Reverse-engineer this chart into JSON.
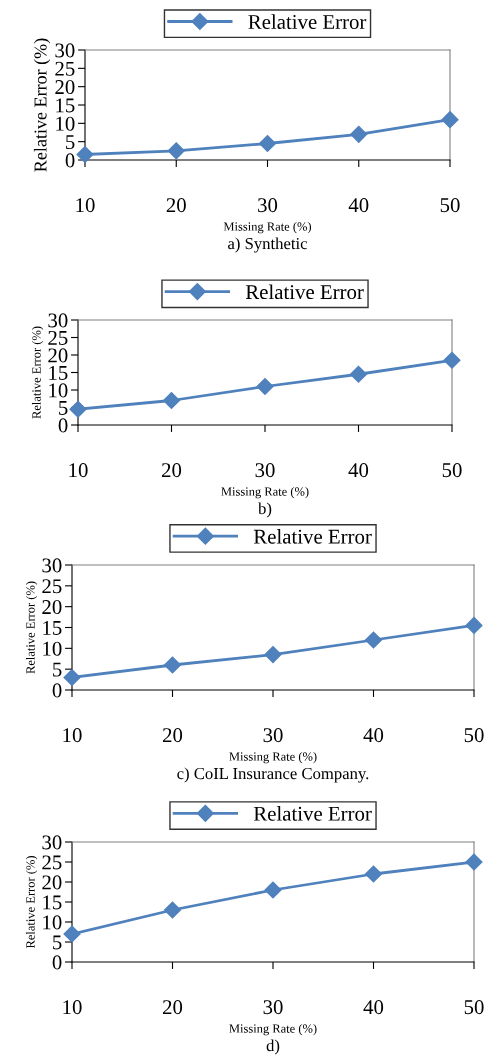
{
  "chart_data": [
    {
      "type": "line",
      "x": [
        10,
        20,
        30,
        40,
        50
      ],
      "series": [
        {
          "name": "Relative Error",
          "color": "#4f81bd",
          "values": [
            1.5,
            2.5,
            4.5,
            7,
            11
          ]
        }
      ],
      "xlim": [
        10,
        50
      ],
      "xticks": [
        10,
        20,
        30,
        40,
        50
      ],
      "ylim": [
        0,
        30
      ],
      "yticks": [
        0,
        5,
        10,
        15,
        20,
        25,
        30
      ],
      "xlabel": "Missing Rate (%)",
      "ylabel": "Relative Error (%)",
      "marker": "diamond",
      "line_style": "solid",
      "legend": "top",
      "grid": false,
      "annotations": [
        "a) Synthetic"
      ]
    },
    {
      "type": "line",
      "x": [
        10,
        20,
        30,
        40,
        50
      ],
      "series": [
        {
          "name": "Relative Error",
          "color": "#4f81bd",
          "values": [
            4.5,
            7,
            11,
            14.5,
            18.5
          ]
        }
      ],
      "xlim": [
        10,
        50
      ],
      "xticks": [
        10,
        20,
        30,
        40,
        50
      ],
      "ylim": [
        0,
        30
      ],
      "yticks": [
        0,
        5,
        10,
        15,
        20,
        25,
        30
      ],
      "xlabel": "Missing Rate (%)",
      "ylabel": "Relative Error (%)",
      "marker": "diamond",
      "line_style": "solid",
      "legend": "top",
      "grid": false,
      "annotations": [
        "b)"
      ]
    },
    {
      "type": "line",
      "x": [
        10,
        20,
        30,
        40,
        50
      ],
      "series": [
        {
          "name": "Relative Error",
          "color": "#4f81bd",
          "values": [
            3,
            6,
            8.5,
            12,
            15.5
          ]
        }
      ],
      "xlim": [
        10,
        50
      ],
      "xticks": [
        10,
        20,
        30,
        40,
        50
      ],
      "ylim": [
        0,
        30
      ],
      "yticks": [
        0,
        5,
        10,
        15,
        20,
        25,
        30
      ],
      "xlabel": "Missing Rate (%)",
      "ylabel": "Relative Error (%)",
      "marker": "diamond",
      "line_style": "solid",
      "legend": "top",
      "grid": false,
      "annotations": [
        "c) CoIL Insurance Company."
      ]
    },
    {
      "type": "line",
      "x": [
        10,
        20,
        30,
        40,
        50
      ],
      "series": [
        {
          "name": "Relative Error",
          "color": "#4f81bd",
          "values": [
            7,
            13,
            18,
            22,
            25
          ]
        }
      ],
      "xlim": [
        10,
        50
      ],
      "xticks": [
        10,
        20,
        30,
        40,
        50
      ],
      "ylim": [
        0,
        30
      ],
      "yticks": [
        0,
        5,
        10,
        15,
        20,
        25,
        30
      ],
      "xlabel": "Missing Rate (%)",
      "ylabel": "Relative Error (%)",
      "marker": "diamond",
      "line_style": "solid",
      "legend": "top",
      "grid": false,
      "annotations": [
        "d)"
      ]
    }
  ]
}
